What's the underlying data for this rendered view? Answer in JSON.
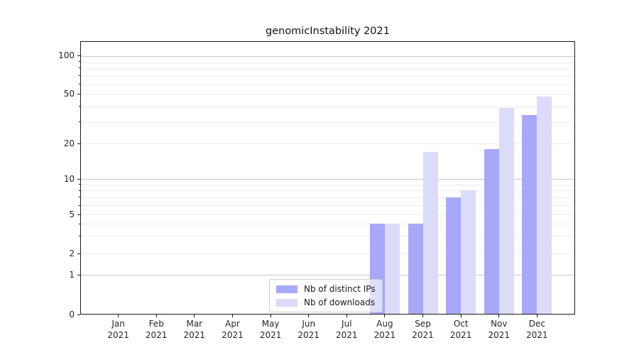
{
  "chart": {
    "title": "genomicInstability 2021"
  },
  "chart_data": {
    "type": "bar",
    "title": "genomicInstability 2021",
    "categories": [
      "Jan",
      "Feb",
      "Mar",
      "Apr",
      "May",
      "Jun",
      "Jul",
      "Aug",
      "Sep",
      "Oct",
      "Nov",
      "Dec"
    ],
    "category_year": "2021",
    "series": [
      {
        "name": "Nb of distinct IPs",
        "color": "#a8a8fa",
        "values": [
          0,
          0,
          0,
          0,
          0,
          0,
          0,
          4,
          4,
          7,
          18,
          34
        ]
      },
      {
        "name": "Nb of downloads",
        "color": "#dbdbfa",
        "values": [
          0,
          0,
          0,
          0,
          0,
          0,
          0,
          4,
          17,
          8,
          39,
          48
        ]
      }
    ],
    "xlabel": "",
    "ylabel": "",
    "yscale": "symlog",
    "ytick_labels": [
      "100",
      "50",
      "20",
      "10",
      "5",
      "2",
      "1",
      "0"
    ],
    "yticks": [
      100,
      50,
      20,
      10,
      5,
      2,
      1,
      0
    ],
    "ylim": [
      0,
      130
    ],
    "grid": "horizontal-major-and-minor",
    "minor_gridline_values": [
      90,
      80,
      70,
      60,
      40,
      30,
      9,
      8,
      7,
      6,
      4,
      3
    ],
    "legend_position": "lower-center-inside"
  }
}
